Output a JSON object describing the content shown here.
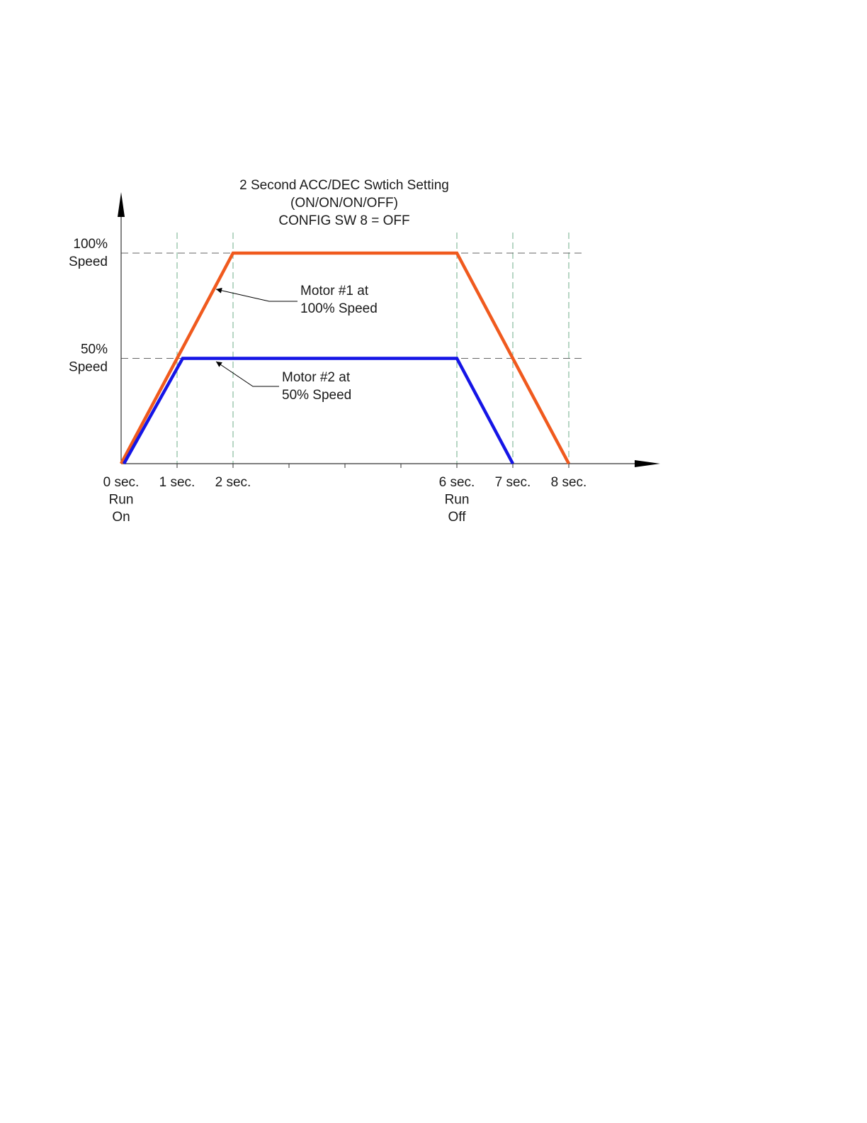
{
  "chart_data": {
    "type": "line",
    "title_lines": [
      "2 Second ACC/DEC Swtich Setting",
      "(ON/ON/ON/OFF)",
      "CONFIG SW 8 = OFF"
    ],
    "x_ticks": [
      {
        "value": 0,
        "lines": [
          "0 sec.",
          "Run",
          "On"
        ]
      },
      {
        "value": 1,
        "lines": [
          "1 sec."
        ]
      },
      {
        "value": 2,
        "lines": [
          "2 sec."
        ]
      },
      {
        "value": 3,
        "lines": []
      },
      {
        "value": 4,
        "lines": []
      },
      {
        "value": 5,
        "lines": []
      },
      {
        "value": 6,
        "lines": [
          "6 sec.",
          "Run",
          "Off"
        ]
      },
      {
        "value": 7,
        "lines": [
          "7 sec."
        ]
      },
      {
        "value": 8,
        "lines": [
          "8 sec."
        ]
      }
    ],
    "vertical_gridlines_at": [
      1,
      2,
      6,
      7,
      8
    ],
    "y_ticks": [
      {
        "value": 100,
        "lines": [
          "100%",
          "Speed"
        ]
      },
      {
        "value": 50,
        "lines": [
          "50%",
          "Speed"
        ]
      }
    ],
    "xlim": [
      0,
      9.7
    ],
    "ylim": [
      0,
      125
    ],
    "series": [
      {
        "name": "Motor #1 at 100% Speed",
        "color": "#f05a1e",
        "points": [
          [
            0,
            0
          ],
          [
            2,
            100
          ],
          [
            6,
            100
          ],
          [
            8,
            0
          ]
        ]
      },
      {
        "name": "Motor #2 at 50% Speed",
        "color": "#1515e6",
        "points": [
          [
            0.05,
            0
          ],
          [
            1.1,
            50
          ],
          [
            6,
            50
          ],
          [
            7,
            0
          ]
        ]
      }
    ],
    "annotations": [
      {
        "lines": [
          "Motor #1 at",
          "100% Speed"
        ],
        "series": 0,
        "target": [
          1.7,
          82
        ]
      },
      {
        "lines": [
          "Motor #2 at",
          "50% Speed"
        ],
        "series": 1,
        "target": [
          1.7,
          49
        ]
      }
    ]
  }
}
